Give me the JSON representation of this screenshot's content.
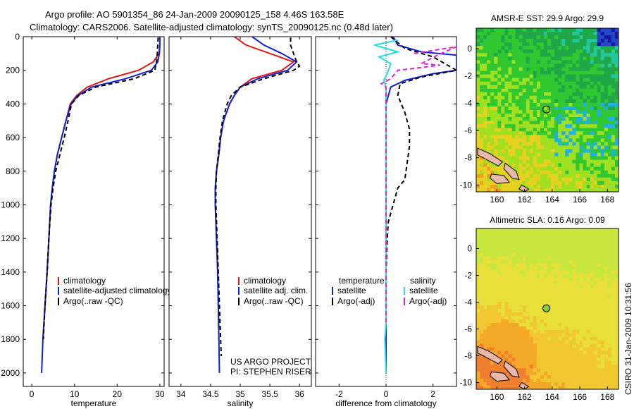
{
  "header": {
    "title_line1": "Argo profile: AO 5901354_86 24-Jan-2009 20090125_158 4.46S 163.58E",
    "title_line2": "Climatology: CARS2006. Satellite-adjusted climatology: synTS_20090125.nc (0.48d later)"
  },
  "side_text": "CSIRO 31-Jan-2009 10:31:56",
  "colors": {
    "climatology": "#e01818",
    "satellite": "#1020d8",
    "argo": "#000000",
    "sat_salinity": "#20e0e0",
    "argo_salinity_adj": "#e020e0"
  },
  "chart_data": [
    {
      "id": "temperature",
      "type": "line",
      "xlabel": "temperature",
      "ylabel": "",
      "xlim": [
        -2,
        31
      ],
      "ylim": [
        2080,
        0
      ],
      "x_ticks": [
        0,
        10,
        20,
        30
      ],
      "y_ticks": [
        0,
        200,
        400,
        600,
        800,
        1000,
        1200,
        1400,
        1600,
        1800,
        2000
      ],
      "y_tick_labels": [
        "0",
        "200",
        "400",
        "600",
        "800",
        "1000",
        "1200",
        "1400",
        "1600",
        "1800",
        "2000"
      ],
      "legend": {
        "placement": "bottom-right",
        "entries": [
          {
            "label": "climatology",
            "series": "clim"
          },
          {
            "label": "satellite-adjusted climatology",
            "series": "sat"
          },
          {
            "label": "Argo(..raw -QC)",
            "series": "argo"
          }
        ]
      },
      "series": [
        {
          "key": "clim",
          "color_key": "climatology",
          "dash": false,
          "points": [
            [
              30,
              5
            ],
            [
              30,
              50
            ],
            [
              29.8,
              100
            ],
            [
              28.5,
              150
            ],
            [
              25,
              200
            ],
            [
              18,
              250
            ],
            [
              13,
              300
            ],
            [
              10.5,
              350
            ],
            [
              9,
              400
            ],
            [
              8,
              500
            ],
            [
              7,
              600
            ],
            [
              6,
              700
            ],
            [
              5.3,
              800
            ],
            [
              4.8,
              900
            ],
            [
              4.4,
              1000
            ],
            [
              4,
              1200
            ],
            [
              3.6,
              1400
            ],
            [
              3.1,
              1600
            ],
            [
              2.6,
              1800
            ]
          ]
        },
        {
          "key": "sat",
          "color_key": "satellite",
          "dash": false,
          "points": [
            [
              30,
              5
            ],
            [
              30,
              50
            ],
            [
              29.9,
              100
            ],
            [
              29.5,
              150
            ],
            [
              28,
              200
            ],
            [
              22,
              250
            ],
            [
              14,
              300
            ],
            [
              10.8,
              350
            ],
            [
              9.2,
              400
            ],
            [
              8,
              500
            ],
            [
              7,
              600
            ],
            [
              6,
              700
            ],
            [
              5.3,
              800
            ],
            [
              4.8,
              900
            ],
            [
              4.4,
              1000
            ],
            [
              4,
              1200
            ],
            [
              3.6,
              1400
            ],
            [
              3.1,
              1600
            ],
            [
              2.6,
              1800
            ],
            [
              2.3,
              2000
            ]
          ]
        },
        {
          "key": "argo",
          "color_key": "argo",
          "dash": true,
          "points": [
            [
              29.6,
              5
            ],
            [
              29.5,
              50
            ],
            [
              29.4,
              100
            ],
            [
              29.2,
              150
            ],
            [
              28.8,
              200
            ],
            [
              24,
              250
            ],
            [
              15,
              300
            ],
            [
              11,
              350
            ],
            [
              9.3,
              400
            ],
            [
              8.5,
              500
            ],
            [
              7.6,
              600
            ],
            [
              6.6,
              700
            ],
            [
              5.6,
              800
            ],
            [
              5,
              900
            ],
            [
              4.5,
              1000
            ],
            [
              4,
              1200
            ],
            [
              3.6,
              1400
            ],
            [
              3.1,
              1600
            ],
            [
              2.7,
              1800
            ]
          ]
        }
      ]
    },
    {
      "id": "salinity",
      "type": "line",
      "xlabel": "salinity",
      "ylabel": "",
      "xlim": [
        33.8,
        36.2
      ],
      "ylim": [
        2080,
        0
      ],
      "x_ticks": [
        34,
        34.5,
        35,
        35.5,
        36
      ],
      "y_ticks": [
        0,
        200,
        400,
        600,
        800,
        1000,
        1200,
        1400,
        1600,
        1800,
        2000
      ],
      "legend": {
        "placement": "bottom-right",
        "entries": [
          {
            "label": "climatology",
            "series": "clim"
          },
          {
            "label": "satellite adj. clim.",
            "series": "sat"
          },
          {
            "label": "Argo(..raw -QC)",
            "series": "argo"
          }
        ]
      },
      "annotations": [
        "US ARGO PROJECT",
        "PI: STEPHEN RISER"
      ],
      "series": [
        {
          "key": "clim",
          "color_key": "climatology",
          "dash": false,
          "points": [
            [
              34.9,
              0
            ],
            [
              35.1,
              50
            ],
            [
              35.5,
              100
            ],
            [
              35.9,
              150
            ],
            [
              35.7,
              200
            ],
            [
              35.2,
              250
            ],
            [
              35.0,
              300
            ],
            [
              34.9,
              350
            ],
            [
              34.82,
              400
            ],
            [
              34.72,
              500
            ],
            [
              34.67,
              600
            ],
            [
              34.64,
              700
            ],
            [
              34.6,
              800
            ],
            [
              34.58,
              900
            ],
            [
              34.58,
              1000
            ],
            [
              34.6,
              1200
            ],
            [
              34.62,
              1400
            ],
            [
              34.63,
              1600
            ],
            [
              34.64,
              1800
            ]
          ]
        },
        {
          "key": "sat",
          "color_key": "satellite",
          "dash": false,
          "points": [
            [
              35.2,
              0
            ],
            [
              35.4,
              50
            ],
            [
              35.7,
              100
            ],
            [
              35.95,
              150
            ],
            [
              35.8,
              200
            ],
            [
              35.3,
              250
            ],
            [
              35.0,
              300
            ],
            [
              34.9,
              350
            ],
            [
              34.82,
              400
            ],
            [
              34.72,
              500
            ],
            [
              34.67,
              600
            ],
            [
              34.64,
              700
            ],
            [
              34.6,
              800
            ],
            [
              34.58,
              900
            ],
            [
              34.58,
              1000
            ],
            [
              34.6,
              1200
            ],
            [
              34.62,
              1400
            ],
            [
              34.63,
              1600
            ],
            [
              34.64,
              1800
            ],
            [
              34.65,
              2000
            ]
          ]
        },
        {
          "key": "argo",
          "color_key": "argo",
          "dash": true,
          "points": [
            [
              35.85,
              5
            ],
            [
              35.85,
              50
            ],
            [
              35.9,
              100
            ],
            [
              35.95,
              150
            ],
            [
              36.0,
              175
            ],
            [
              35.9,
              200
            ],
            [
              35.4,
              250
            ],
            [
              35.0,
              300
            ],
            [
              34.85,
              350
            ],
            [
              34.78,
              400
            ],
            [
              34.7,
              500
            ],
            [
              34.66,
              600
            ],
            [
              34.63,
              700
            ],
            [
              34.6,
              800
            ],
            [
              34.59,
              900
            ],
            [
              34.59,
              1000
            ],
            [
              34.61,
              1200
            ],
            [
              34.63,
              1400
            ],
            [
              34.65,
              1600
            ],
            [
              34.67,
              1800
            ],
            [
              34.68,
              1900
            ]
          ]
        }
      ]
    },
    {
      "id": "difference",
      "type": "line",
      "xlabel": "difference from climatology",
      "ylabel": "",
      "xlim": [
        -3,
        3
      ],
      "ylim": [
        2080,
        0
      ],
      "x_ticks": [
        -2,
        0,
        2
      ],
      "y_ticks": [
        0,
        200,
        400,
        600,
        800,
        1000,
        1200,
        1400,
        1600,
        1800,
        2000
      ],
      "legend": {
        "placement": "bottom",
        "temperature_heading": "temperature",
        "salinity_heading": "salinity",
        "temperature_entries": [
          {
            "label": "satellite",
            "series": "t_sat"
          },
          {
            "label": "Argo(-adj)",
            "series": "t_argo"
          }
        ],
        "salinity_entries": [
          {
            "label": "satellite",
            "series": "s_sat"
          },
          {
            "label": "Argo(-adj)",
            "series": "s_argo"
          }
        ]
      },
      "series": [
        {
          "key": "t_sat",
          "color_key": "satellite",
          "dash": false,
          "points": [
            [
              0.3,
              0
            ],
            [
              0.5,
              50
            ],
            [
              1.5,
              90
            ],
            [
              3,
              110
            ],
            [
              3,
              200
            ],
            [
              2,
              220
            ],
            [
              0.8,
              260
            ],
            [
              0.2,
              300
            ],
            [
              0,
              400
            ],
            [
              0,
              600
            ],
            [
              0,
              800
            ],
            [
              0,
              1000
            ],
            [
              0,
              1200
            ],
            [
              0,
              1400
            ],
            [
              0,
              1600
            ],
            [
              0,
              1800
            ],
            [
              0,
              2000
            ]
          ]
        },
        {
          "key": "t_argo",
          "color_key": "argo",
          "dash": true,
          "points": [
            [
              0.2,
              0
            ],
            [
              0.8,
              70
            ],
            [
              2,
              120
            ],
            [
              3,
              200
            ],
            [
              1.5,
              240
            ],
            [
              0.6,
              280
            ],
            [
              0.5,
              350
            ],
            [
              0.8,
              450
            ],
            [
              1.0,
              550
            ],
            [
              1.0,
              650
            ],
            [
              0.9,
              750
            ],
            [
              0.8,
              850
            ],
            [
              0.5,
              900
            ],
            [
              0.3,
              1000
            ],
            [
              0.1,
              1100
            ],
            [
              0.05,
              1200
            ],
            [
              0,
              1400
            ]
          ]
        },
        {
          "key": "s_sat",
          "color_key": "sat_salinity",
          "dash": false,
          "points": [
            [
              0.5,
              20
            ],
            [
              -0.5,
              50
            ],
            [
              0.5,
              90
            ],
            [
              -0.3,
              120
            ],
            [
              0.2,
              160
            ],
            [
              0.05,
              220
            ],
            [
              -0.1,
              260
            ],
            [
              0,
              300
            ],
            [
              0,
              500
            ],
            [
              0,
              700
            ],
            [
              0,
              900
            ],
            [
              0,
              1100
            ],
            [
              0,
              1300
            ],
            [
              0,
              1500
            ],
            [
              0,
              1700
            ],
            [
              -0.05,
              1800
            ],
            [
              0,
              2000
            ]
          ]
        },
        {
          "key": "s_argo",
          "color_key": "argo_salinity_adj",
          "dash": true,
          "points": [
            [
              1.2,
              100
            ],
            [
              3,
              60
            ],
            [
              2.2,
              110
            ],
            [
              1.5,
              160
            ],
            [
              2.3,
              170
            ],
            [
              0.5,
              200
            ],
            [
              0.2,
              250
            ],
            [
              -0.2,
              280
            ],
            [
              0,
              300
            ],
            [
              0,
              500
            ],
            [
              0,
              700
            ],
            [
              0,
              900
            ],
            [
              0,
              1100
            ],
            [
              0,
              1300
            ],
            [
              0,
              1500
            ],
            [
              0,
              1700
            ]
          ]
        }
      ]
    },
    {
      "id": "sst_map",
      "type": "heatmap",
      "title": "AMSR-E SST: 29.9  Argo: 29.9",
      "xlim": [
        158.5,
        168.8
      ],
      "ylim": [
        -10.5,
        1.5
      ],
      "x_ticks": [
        160,
        162,
        164,
        166,
        168
      ],
      "y_ticks": [
        0,
        -2,
        -4,
        -6,
        -8,
        -10
      ],
      "marker": {
        "lon": 163.58,
        "lat": -4.46
      },
      "palette": [
        "#f0a020",
        "#e8d020",
        "#a0e020",
        "#30c830",
        "#20a848",
        "#20c8a0",
        "#20b0e8",
        "#2048c8",
        "#1818a0"
      ]
    },
    {
      "id": "sla_map",
      "type": "heatmap",
      "title": "Altimetric SLA: 0.16  Argo: 0.09",
      "xlim": [
        158.5,
        168.8
      ],
      "ylim": [
        -10.5,
        1.5
      ],
      "x_ticks": [
        160,
        162,
        164,
        166,
        168
      ],
      "y_ticks": [
        0,
        -2,
        -4,
        -6,
        -8,
        -10
      ],
      "marker": {
        "lon": 163.58,
        "lat": -4.46
      },
      "palette": [
        "#f08030",
        "#f4a828",
        "#f2c830",
        "#e8e038",
        "#c8e840",
        "#a8e048"
      ]
    }
  ]
}
